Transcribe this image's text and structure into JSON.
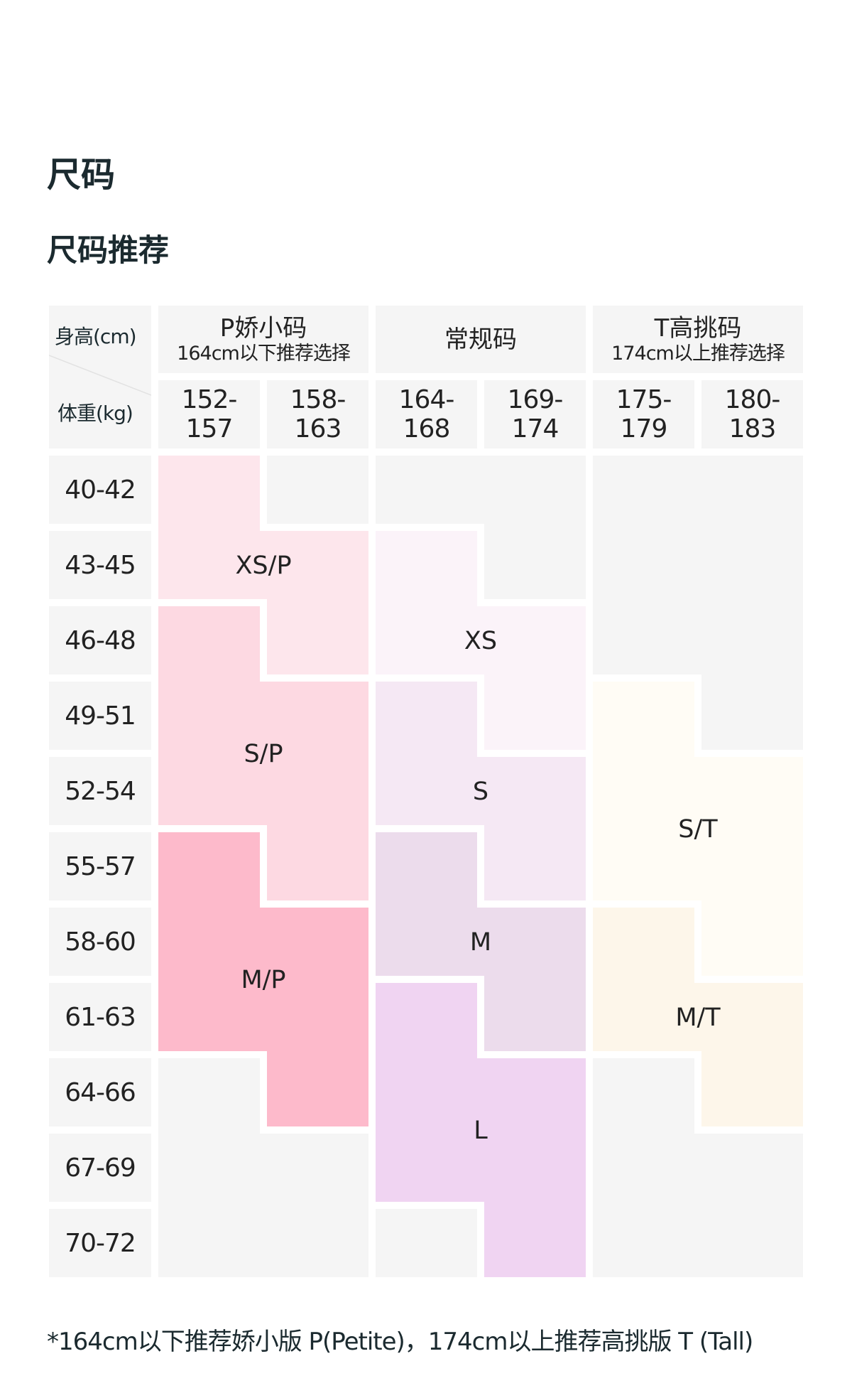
{
  "page_title": "尺码",
  "section_title": "尺码推荐",
  "table": {
    "corner_height_label": "身高(cm)",
    "corner_weight_label": "体重(kg)",
    "groups": [
      {
        "title": "P娇小码",
        "subtitle": "164cm以下推荐选择"
      },
      {
        "title": "常规码",
        "subtitle": ""
      },
      {
        "title": "T高挑码",
        "subtitle": "174cm以上推荐选择"
      }
    ],
    "heights": [
      "152-157",
      "158-163",
      "164-168",
      "169-174",
      "175-179",
      "180-183"
    ],
    "weights": [
      "40-42",
      "43-45",
      "46-48",
      "49-51",
      "52-54",
      "55-57",
      "58-60",
      "61-63",
      "64-66",
      "67-69",
      "70-72"
    ],
    "sizes": {
      "XS/P": {
        "label": "XS/P",
        "color": "#fde6ec"
      },
      "S/P": {
        "label": "S/P",
        "color": "#fdd9e2"
      },
      "M/P": {
        "label": "M/P",
        "color": "#fdbacb"
      },
      "XS": {
        "label": "XS",
        "color": "#fbf3f9"
      },
      "S": {
        "label": "S",
        "color": "#f5e8f4"
      },
      "M": {
        "label": "M",
        "color": "#ecdcec"
      },
      "L": {
        "label": "L",
        "color": "#f0d4f2"
      },
      "S/T": {
        "label": "S/T",
        "color": "#fffcf5"
      },
      "M/T": {
        "label": "M/T",
        "color": "#fdf6ea"
      }
    },
    "empty_color": "#f5f5f5",
    "matrix": [
      [
        "XS/P",
        "",
        "",
        "",
        "",
        ""
      ],
      [
        "XS/P",
        "XS/P",
        "XS",
        "",
        "",
        ""
      ],
      [
        "S/P",
        "XS/P",
        "XS",
        "XS",
        "",
        ""
      ],
      [
        "S/P",
        "S/P",
        "S",
        "XS",
        "S/T",
        ""
      ],
      [
        "S/P",
        "S/P",
        "S",
        "S",
        "S/T",
        "S/T"
      ],
      [
        "M/P",
        "S/P",
        "M",
        "S",
        "S/T",
        "S/T"
      ],
      [
        "M/P",
        "M/P",
        "M",
        "M",
        "M/T",
        "S/T"
      ],
      [
        "M/P",
        "M/P",
        "L",
        "M",
        "M/T",
        "M/T"
      ],
      [
        "",
        "M/P",
        "L",
        "L",
        "",
        "M/T"
      ],
      [
        "",
        "",
        "L",
        "L",
        "",
        ""
      ],
      [
        "",
        "",
        "",
        "L",
        "",
        ""
      ]
    ]
  },
  "footnote": "*164cm以下推荐娇小版 P(Petite)，174cm以上推荐高挑版 T (Tall)"
}
